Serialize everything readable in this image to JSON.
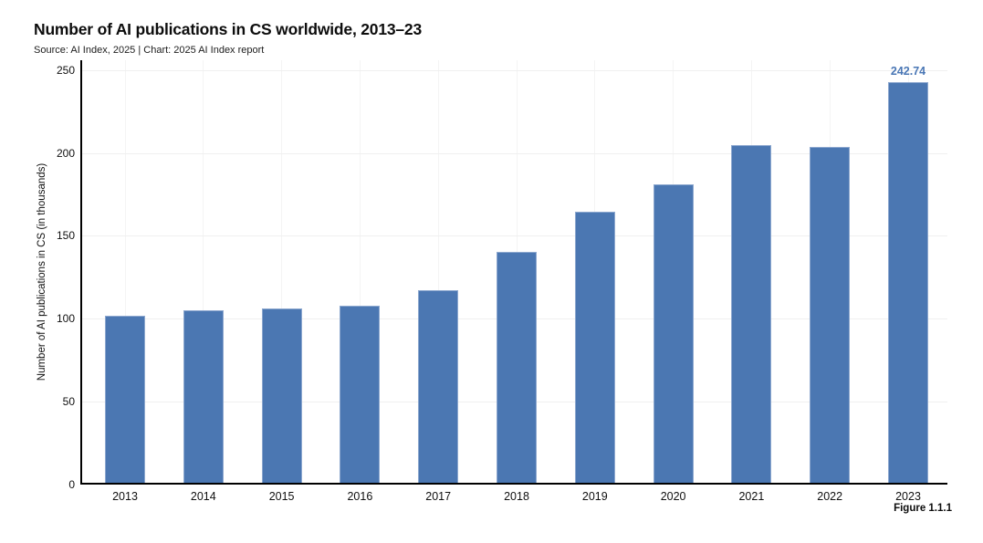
{
  "header": {
    "title": "Number of AI publications in CS worldwide, 2013–23",
    "subtitle": "Source: AI Index, 2025 | Chart: 2025 AI Index report"
  },
  "footer": {
    "figure_label": "Figure 1.1.1"
  },
  "chart_data": {
    "type": "bar",
    "title": "Number of AI publications in CS worldwide, 2013–23",
    "source_line": "Source: AI Index, 2025 | Chart: 2025 AI Index report",
    "categories": [
      "2013",
      "2014",
      "2015",
      "2016",
      "2017",
      "2018",
      "2019",
      "2020",
      "2021",
      "2022",
      "2023"
    ],
    "values": [
      102,
      105,
      106,
      108,
      117.4,
      140.3,
      164.6,
      181.3,
      204.6,
      203.5,
      242.74
    ],
    "annotation": {
      "category": "2023",
      "text": "242.74"
    },
    "xlabel": "",
    "ylabel": "Number of AI publications in CS (in thousands)",
    "ylim": [
      0,
      250
    ],
    "yticks": [
      0,
      50,
      100,
      150,
      200,
      250
    ],
    "grid": true,
    "legend": "none",
    "colors": {
      "bar": "#4b77b2",
      "bar_edge": "#8da8cf",
      "annotation_text": "#4a77b5",
      "hgrid": "#f0f0f0",
      "vgrid": "#f4f4f4",
      "axis": "#000000",
      "text": "#0f0f0f"
    }
  }
}
